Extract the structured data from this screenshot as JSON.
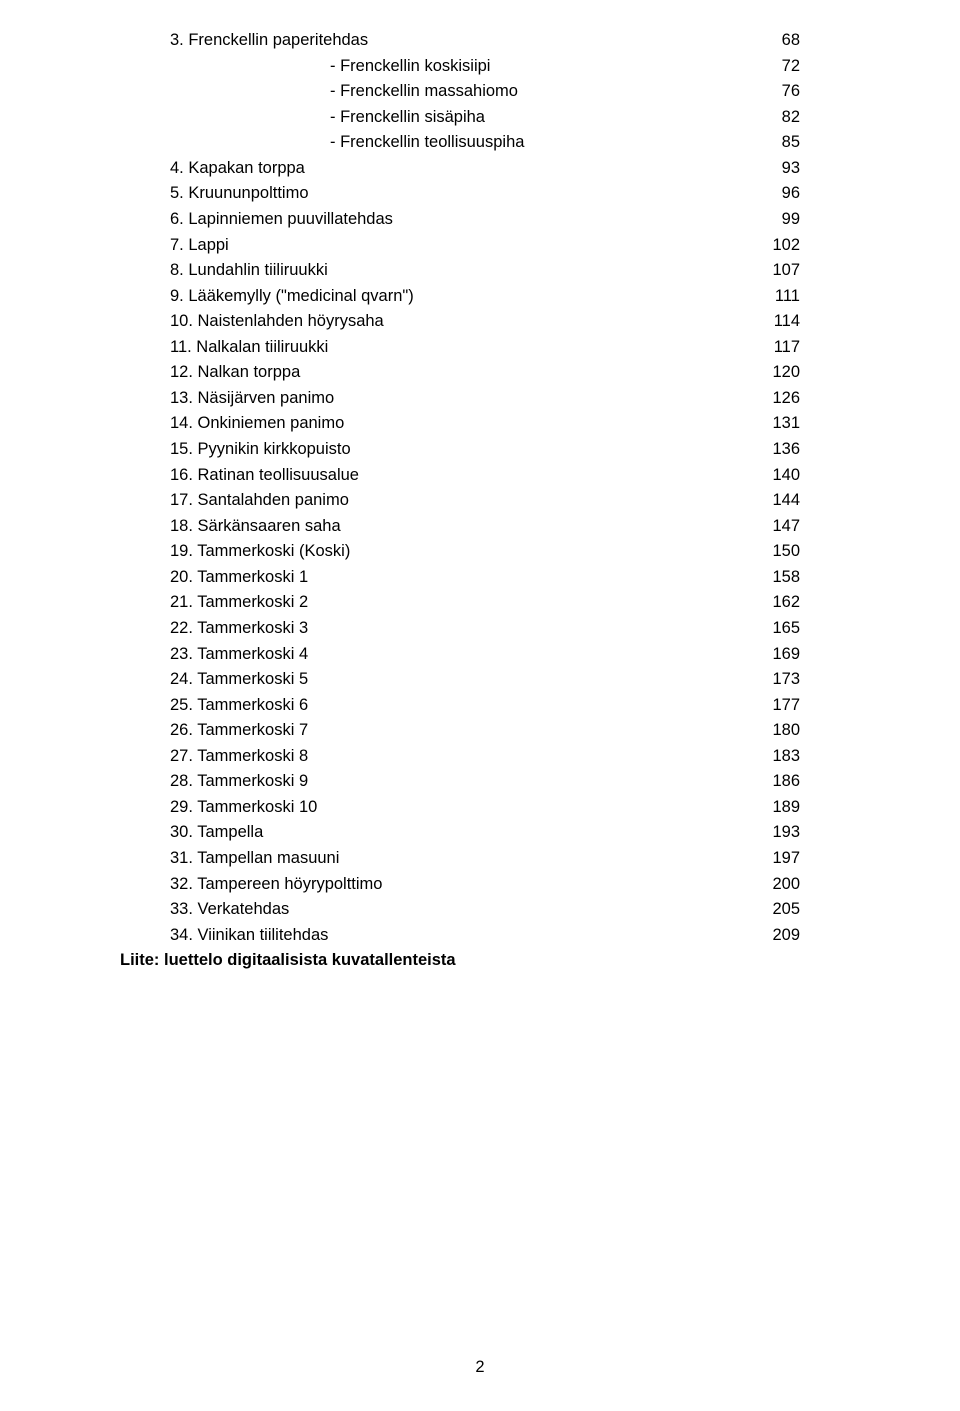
{
  "text_color": "#000000",
  "background_color": "#ffffff",
  "font_size_pt": 12,
  "line_height": 1.55,
  "entries": [
    {
      "label": "3. Frenckellin paperitehdas",
      "page": "68",
      "indent": false
    },
    {
      "label": "- Frenckellin koskisiipi",
      "page": "72",
      "indent": true
    },
    {
      "label": "- Frenckellin massahiomo",
      "page": "76",
      "indent": true
    },
    {
      "label": "- Frenckellin sisäpiha",
      "page": "82",
      "indent": true
    },
    {
      "label": "- Frenckellin teollisuuspiha",
      "page": "85",
      "indent": true
    },
    {
      "label": "4. Kapakan torppa",
      "page": "93",
      "indent": false
    },
    {
      "label": "5. Kruununpolttimo",
      "page": "96",
      "indent": false
    },
    {
      "label": "6. Lapinniemen puuvillatehdas",
      "page": "99",
      "indent": false
    },
    {
      "label": "7. Lappi",
      "page": "102",
      "indent": false
    },
    {
      "label": "8. Lundahlin tiiliruukki",
      "page": "107",
      "indent": false
    },
    {
      "label": "9. Lääkemylly (\"medicinal qvarn\")",
      "page": "111",
      "indent": false
    },
    {
      "label": "10. Naistenlahden höyrysaha",
      "page": "114",
      "indent": false
    },
    {
      "label": "11. Nalkalan tiiliruukki",
      "page": "117",
      "indent": false
    },
    {
      "label": "12. Nalkan torppa",
      "page": "120",
      "indent": false
    },
    {
      "label": "13. Näsijärven panimo",
      "page": "126",
      "indent": false
    },
    {
      "label": "14. Onkiniemen panimo",
      "page": "131",
      "indent": false
    },
    {
      "label": "15. Pyynikin kirkkopuisto",
      "page": "136",
      "indent": false
    },
    {
      "label": "16. Ratinan teollisuusalue",
      "page": "140",
      "indent": false
    },
    {
      "label": "17. Santalahden panimo",
      "page": "144",
      "indent": false
    },
    {
      "label": "18. Särkänsaaren saha",
      "page": "147",
      "indent": false
    },
    {
      "label": "19. Tammerkoski (Koski)",
      "page": "150",
      "indent": false
    },
    {
      "label": "20. Tammerkoski 1",
      "page": "158",
      "indent": false
    },
    {
      "label": "21. Tammerkoski 2",
      "page": "162",
      "indent": false
    },
    {
      "label": "22. Tammerkoski 3",
      "page": "165",
      "indent": false
    },
    {
      "label": "23. Tammerkoski 4",
      "page": "169",
      "indent": false
    },
    {
      "label": "24. Tammerkoski 5",
      "page": "173",
      "indent": false
    },
    {
      "label": "25. Tammerkoski 6",
      "page": "177",
      "indent": false
    },
    {
      "label": "26. Tammerkoski 7",
      "page": "180",
      "indent": false
    },
    {
      "label": "27. Tammerkoski 8",
      "page": "183",
      "indent": false
    },
    {
      "label": "28. Tammerkoski 9",
      "page": "186",
      "indent": false
    },
    {
      "label": "29. Tammerkoski 10",
      "page": "189",
      "indent": false
    },
    {
      "label": "30. Tampella",
      "page": "193",
      "indent": false
    },
    {
      "label": "31. Tampellan masuuni",
      "page": "197",
      "indent": false
    },
    {
      "label": "32. Tampereen höyrypolttimo",
      "page": "200",
      "indent": false
    },
    {
      "label": "33. Verkatehdas",
      "page": "205",
      "indent": false
    },
    {
      "label": "34. Viinikan tiilitehdas",
      "page": "209",
      "indent": false
    }
  ],
  "appendix_line": "Liite: luettelo digitaalisista kuvatallenteista",
  "page_number": "2"
}
